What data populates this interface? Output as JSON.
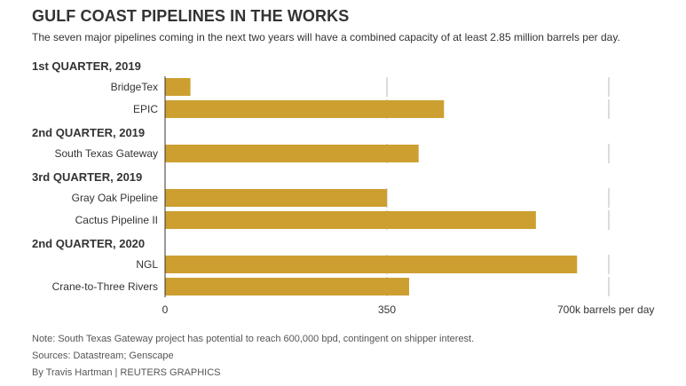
{
  "header": {
    "title": "GULF COAST PIPELINES IN THE WORKS",
    "subtitle": "The seven major pipelines coming in the next two years will have a combined capacity of at least 2.85 million barrels per day."
  },
  "chart_data": {
    "type": "bar",
    "orientation": "horizontal",
    "title": "GULF COAST PIPELINES IN THE WORKS",
    "subtitle": "The seven major pipelines coming in the next two years will have a combined capacity of at least 2.85 million barrels per day.",
    "xlim": [
      0,
      700
    ],
    "ticks": [
      {
        "value": 0,
        "label": "0"
      },
      {
        "value": 350,
        "label": "350"
      },
      {
        "value": 700,
        "label": "700k barrels per day"
      }
    ],
    "grid": true,
    "bar_color": "#cc9f30",
    "groups": [
      {
        "name": "1st QUARTER, 2019",
        "items": [
          {
            "label": "BridgeTex",
            "value": 40
          },
          {
            "label": "EPIC",
            "value": 440
          }
        ]
      },
      {
        "name": "2nd QUARTER, 2019",
        "items": [
          {
            "label": "South Texas Gateway",
            "value": 400
          }
        ]
      },
      {
        "name": "3rd QUARTER, 2019",
        "items": [
          {
            "label": "Gray Oak Pipeline",
            "value": 350
          },
          {
            "label": "Cactus Pipeline II",
            "value": 585
          }
        ]
      },
      {
        "name": "2nd QUARTER, 2020",
        "items": [
          {
            "label": "NGL",
            "value": 650
          },
          {
            "label": "Crane-to-Three Rivers",
            "value": 385
          }
        ]
      }
    ]
  },
  "footer": {
    "note": "Note: South Texas Gateway project has potential to reach 600,000 bpd, contingent on shipper interest.",
    "sources": "Sources: Datastream; Genscape",
    "credit": "By Travis Hartman | REUTERS GRAPHICS"
  }
}
